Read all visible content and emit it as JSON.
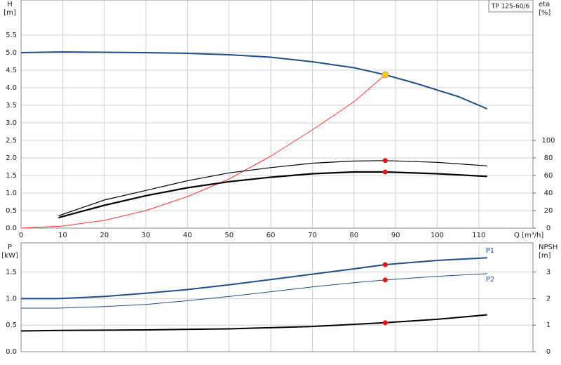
{
  "chart_data": [
    {
      "type": "line",
      "title": "TP 125-60/6",
      "ylabel": "H",
      "yunit": "[m]",
      "y2label": "eta",
      "y2unit": "[%]",
      "xlabel": "Q [m³/h]",
      "xlim": [
        0,
        123
      ],
      "xticks": [
        0,
        10,
        20,
        30,
        40,
        50,
        60,
        70,
        80,
        90,
        100,
        110
      ],
      "xtick_labels": true,
      "ylim": [
        0,
        6.5
      ],
      "yticks": [
        {
          "value": 0,
          "label": "0.0"
        },
        0.5,
        {
          "value": 1,
          "label": "1.0"
        },
        1.5,
        {
          "value": 2,
          "label": "2.0"
        },
        2.5,
        {
          "value": 3,
          "label": "3.0"
        },
        3.5,
        {
          "value": 4,
          "label": "4.0"
        },
        4.5,
        {
          "value": 5,
          "label": "5.0"
        },
        5.5
      ],
      "y2lim": [
        0,
        260
      ],
      "y2ticks": [
        0,
        20,
        40,
        60,
        80,
        100
      ],
      "grid": true,
      "series": [
        {
          "style": "line",
          "color": "#1f4e8c",
          "width": 2,
          "x": [
            0,
            10,
            20,
            30,
            40,
            50,
            60,
            70,
            80,
            87.5,
            95,
            105,
            112
          ],
          "values": [
            5.0,
            5.02,
            5.01,
            5.0,
            4.98,
            4.94,
            4.87,
            4.74,
            4.57,
            4.37,
            4.12,
            3.75,
            3.4
          ]
        },
        {
          "style": "line",
          "color": "#ff3333",
          "width": 1,
          "x": [
            0,
            10,
            20,
            30,
            40,
            50,
            60,
            70,
            80,
            87.5
          ],
          "values": [
            0,
            0.06,
            0.22,
            0.5,
            0.9,
            1.4,
            2.05,
            2.8,
            3.6,
            4.37
          ]
        },
        {
          "style": "line",
          "color": "#000000",
          "width": 1.2,
          "axis": "y2",
          "x": [
            9,
            20,
            30,
            40,
            50,
            60,
            70,
            80,
            87.5,
            100,
            112
          ],
          "values": [
            14,
            32,
            43,
            54,
            63,
            69,
            74,
            76.5,
            77,
            75,
            71
          ]
        },
        {
          "style": "line",
          "color": "#000000",
          "width": 2.2,
          "axis": "y2",
          "x": [
            9,
            20,
            30,
            40,
            50,
            60,
            70,
            80,
            87.5,
            100,
            112
          ],
          "values": [
            12,
            26,
            37,
            46,
            53,
            58,
            62,
            64,
            64,
            62,
            59
          ]
        },
        {
          "style": "marker",
          "color": "#ffcc00",
          "x": [
            87.5
          ],
          "values": [
            4.37
          ]
        },
        {
          "style": "marker",
          "color": "#ee1111",
          "axis": "y2",
          "x": [
            87.5
          ],
          "values": [
            77
          ]
        },
        {
          "style": "marker",
          "color": "#ee1111",
          "axis": "y2",
          "x": [
            87.5
          ],
          "values": [
            64
          ]
        }
      ]
    },
    {
      "type": "line",
      "ylabel": "P",
      "yunit": "[kW]",
      "y2label": "NPSH",
      "y2unit": "[m]",
      "xlim": [
        0,
        123
      ],
      "xticks": [
        0,
        10,
        20,
        30,
        40,
        50,
        60,
        70,
        80,
        90,
        100,
        110
      ],
      "xtick_labels": false,
      "ylim": [
        0,
        2.05
      ],
      "yticks": [
        {
          "value": 0,
          "label": "0.0"
        },
        0.5,
        {
          "value": 1,
          "label": "1.0"
        },
        1.5
      ],
      "y2lim": [
        0,
        4.1
      ],
      "y2ticks": [
        0,
        1,
        2,
        3
      ],
      "grid": true,
      "series": [
        {
          "name": "P1",
          "style": "line",
          "color": "#1f4e8c",
          "width": 2,
          "x": [
            0,
            9,
            20,
            30,
            40,
            50,
            60,
            70,
            80,
            87.5,
            100,
            112
          ],
          "values": [
            1.0,
            1.0,
            1.04,
            1.1,
            1.17,
            1.26,
            1.36,
            1.46,
            1.56,
            1.64,
            1.72,
            1.77
          ]
        },
        {
          "name": "P2",
          "style": "line",
          "color": "#1f4e8c",
          "width": 1,
          "x": [
            0,
            9,
            20,
            30,
            40,
            50,
            60,
            70,
            80,
            87.5,
            100,
            112
          ],
          "values": [
            0.82,
            0.82,
            0.85,
            0.89,
            0.96,
            1.04,
            1.13,
            1.22,
            1.3,
            1.35,
            1.42,
            1.47
          ]
        },
        {
          "style": "line",
          "color": "#000000",
          "width": 2,
          "axis": "y2",
          "x": [
            0,
            9,
            30,
            50,
            70,
            87.5,
            100,
            112
          ],
          "values": [
            0.78,
            0.8,
            0.82,
            0.86,
            0.95,
            1.09,
            1.22,
            1.39
          ]
        },
        {
          "style": "marker",
          "color": "#ee1111",
          "x": [
            87.5
          ],
          "values": [
            1.64
          ]
        },
        {
          "style": "marker",
          "color": "#ee1111",
          "x": [
            87.5
          ],
          "values": [
            1.35
          ]
        },
        {
          "style": "marker",
          "color": "#ee1111",
          "axis": "y2",
          "x": [
            87.5
          ],
          "values": [
            1.09
          ]
        }
      ]
    }
  ]
}
